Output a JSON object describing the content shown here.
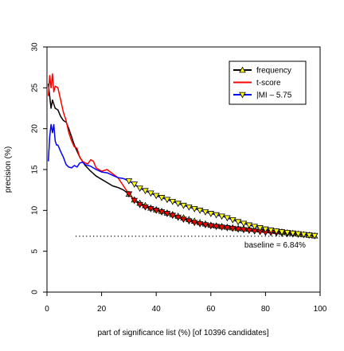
{
  "chart_data": {
    "type": "line",
    "title": "",
    "xlabel": "part of significance list (%) [of 10396 candidates]",
    "ylabel": "precision (%)",
    "xlim": [
      0,
      100
    ],
    "ylim": [
      0,
      30
    ],
    "xticks": [
      0,
      20,
      40,
      60,
      80,
      100
    ],
    "yticks": [
      0,
      5,
      10,
      15,
      20,
      25,
      30
    ],
    "grid": false,
    "legend_position": "top-right",
    "baseline": {
      "value": 6.84,
      "label": "baseline = 6.84%"
    },
    "series": [
      {
        "name": "frequency",
        "color": "#000000",
        "marker": "triangle-up",
        "marker_fill": "#ffff00",
        "x": [
          0.5,
          1,
          1.5,
          2,
          3,
          4,
          5,
          6,
          7,
          8,
          9,
          10,
          12,
          14,
          16,
          18,
          20,
          22,
          24,
          26,
          28,
          30,
          32,
          34,
          36,
          38,
          40,
          45,
          50,
          55,
          60,
          65,
          70,
          75,
          80,
          85,
          90,
          95,
          98
        ],
        "y": [
          25.5,
          24,
          22.5,
          23.5,
          22.5,
          22.3,
          21.5,
          21,
          20.8,
          20,
          19,
          18,
          16.5,
          15.5,
          14.8,
          14.2,
          13.8,
          13.4,
          13,
          12.8,
          12.5,
          12,
          11.3,
          10.9,
          10.6,
          10.3,
          10.1,
          9.6,
          9.1,
          8.6,
          8.2,
          8,
          7.8,
          7.7,
          7.6,
          7.4,
          7.2,
          7,
          6.9
        ]
      },
      {
        "name": "t-score",
        "color": "#ff0000",
        "marker": "triangle-down",
        "marker_fill": "#ff0000",
        "x": [
          0.5,
          1,
          1.5,
          2,
          2.5,
          3,
          4,
          5,
          6,
          7,
          8,
          9,
          10,
          11,
          12,
          13,
          14,
          15,
          16,
          17,
          18,
          20,
          22,
          24,
          26,
          28,
          30,
          32,
          34,
          36,
          38,
          40,
          45,
          50,
          55,
          60,
          65,
          70,
          75,
          80,
          85,
          90,
          95,
          98
        ],
        "y": [
          24,
          26.5,
          25,
          26.7,
          24.5,
          25.2,
          25,
          23.5,
          22,
          21,
          19.5,
          18.5,
          17.8,
          17.6,
          16.5,
          16,
          15.8,
          15.7,
          16.2,
          16,
          15.2,
          14.8,
          15,
          14.5,
          14,
          13,
          12,
          11.2,
          10.7,
          10.4,
          10.2,
          10,
          9.5,
          8.9,
          8.4,
          8.1,
          7.9,
          7.7,
          7.5,
          7.3,
          7.2,
          7.1,
          7,
          6.9
        ]
      },
      {
        "name": "|MI – 5.75",
        "color": "#0000ff",
        "marker": "triangle-down",
        "marker_fill": "#ffff00",
        "x": [
          0.5,
          1,
          1.5,
          2,
          2.5,
          3,
          3.5,
          4,
          5,
          6,
          7,
          8,
          9,
          10,
          11,
          12,
          13,
          14,
          16,
          18,
          20,
          22,
          24,
          26,
          28,
          30,
          32,
          34,
          36,
          38,
          40,
          45,
          50,
          55,
          60,
          65,
          70,
          75,
          80,
          85,
          90,
          95,
          98
        ],
        "y": [
          16,
          19,
          20.5,
          19.5,
          20.5,
          18.5,
          18,
          18,
          17.2,
          16.5,
          15.6,
          15.3,
          15.2,
          15.5,
          15.3,
          15.8,
          15.9,
          15.6,
          15.4,
          15,
          14.7,
          14.6,
          14.3,
          14,
          13.9,
          13.6,
          13.2,
          12.7,
          12.4,
          12.1,
          11.8,
          11.2,
          10.6,
          10.1,
          9.6,
          9.2,
          8.6,
          8.1,
          7.7,
          7.4,
          7.2,
          7,
          6.9
        ]
      }
    ]
  }
}
